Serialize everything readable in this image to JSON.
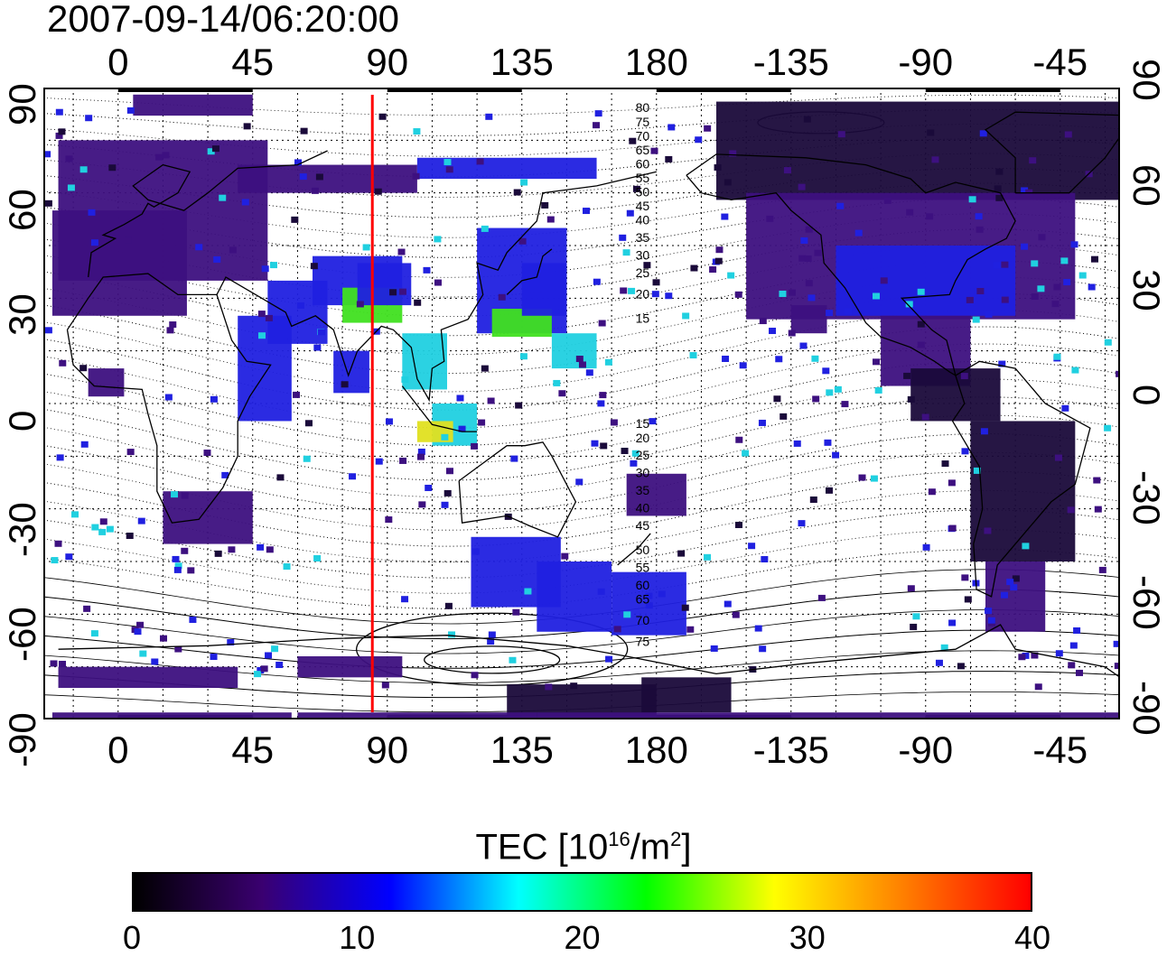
{
  "title": "2007-09-14/06:20:00",
  "top_lon_ticks": [
    "0",
    "45",
    "90",
    "135",
    "180",
    "-135",
    "-90",
    "-45"
  ],
  "bottom_lon_ticks": [
    "0",
    "45",
    "90",
    "135",
    "180",
    "-135",
    "-90",
    "-45"
  ],
  "left_lat_ticks": [
    "90",
    "60",
    "30",
    "0",
    "-30",
    "-60",
    "-90"
  ],
  "right_lat_ticks": [
    "90",
    "60",
    "30",
    "0",
    "-30",
    "-60",
    "-90"
  ],
  "contour_labels": [
    "80",
    "75",
    "70",
    "65",
    "60",
    "55",
    "50",
    "45",
    "40",
    "35",
    "30",
    "25",
    "20",
    "15",
    "15",
    "20",
    "25",
    "30",
    "35",
    "40",
    "45",
    "50",
    "55",
    "60",
    "65",
    "70",
    "75"
  ],
  "colorbar": {
    "title_prefix": "TEC  [10",
    "title_exp1": "16",
    "title_mid": "/m",
    "title_exp2": "2",
    "title_suffix": "]",
    "ticks": [
      "0",
      "10",
      "20",
      "30",
      "40"
    ],
    "colors": [
      "#000000",
      "#3a0070",
      "#0000ff",
      "#00ffff",
      "#00ff00",
      "#ffff00",
      "#ff8000",
      "#ff0000"
    ]
  },
  "map": {
    "lon_range": [
      -25,
      335
    ],
    "lat_range": [
      -90,
      90
    ],
    "marker_line_lon": 85,
    "marker_line_color": "#ff0000",
    "data_colors": {
      "low": "#3d1080",
      "dark": "#1a0a3a",
      "mid": "#2020e0",
      "cyan": "#20d0e0",
      "green": "#40e020",
      "yellow": "#e0e020",
      "orange": "#ff9000"
    }
  }
}
